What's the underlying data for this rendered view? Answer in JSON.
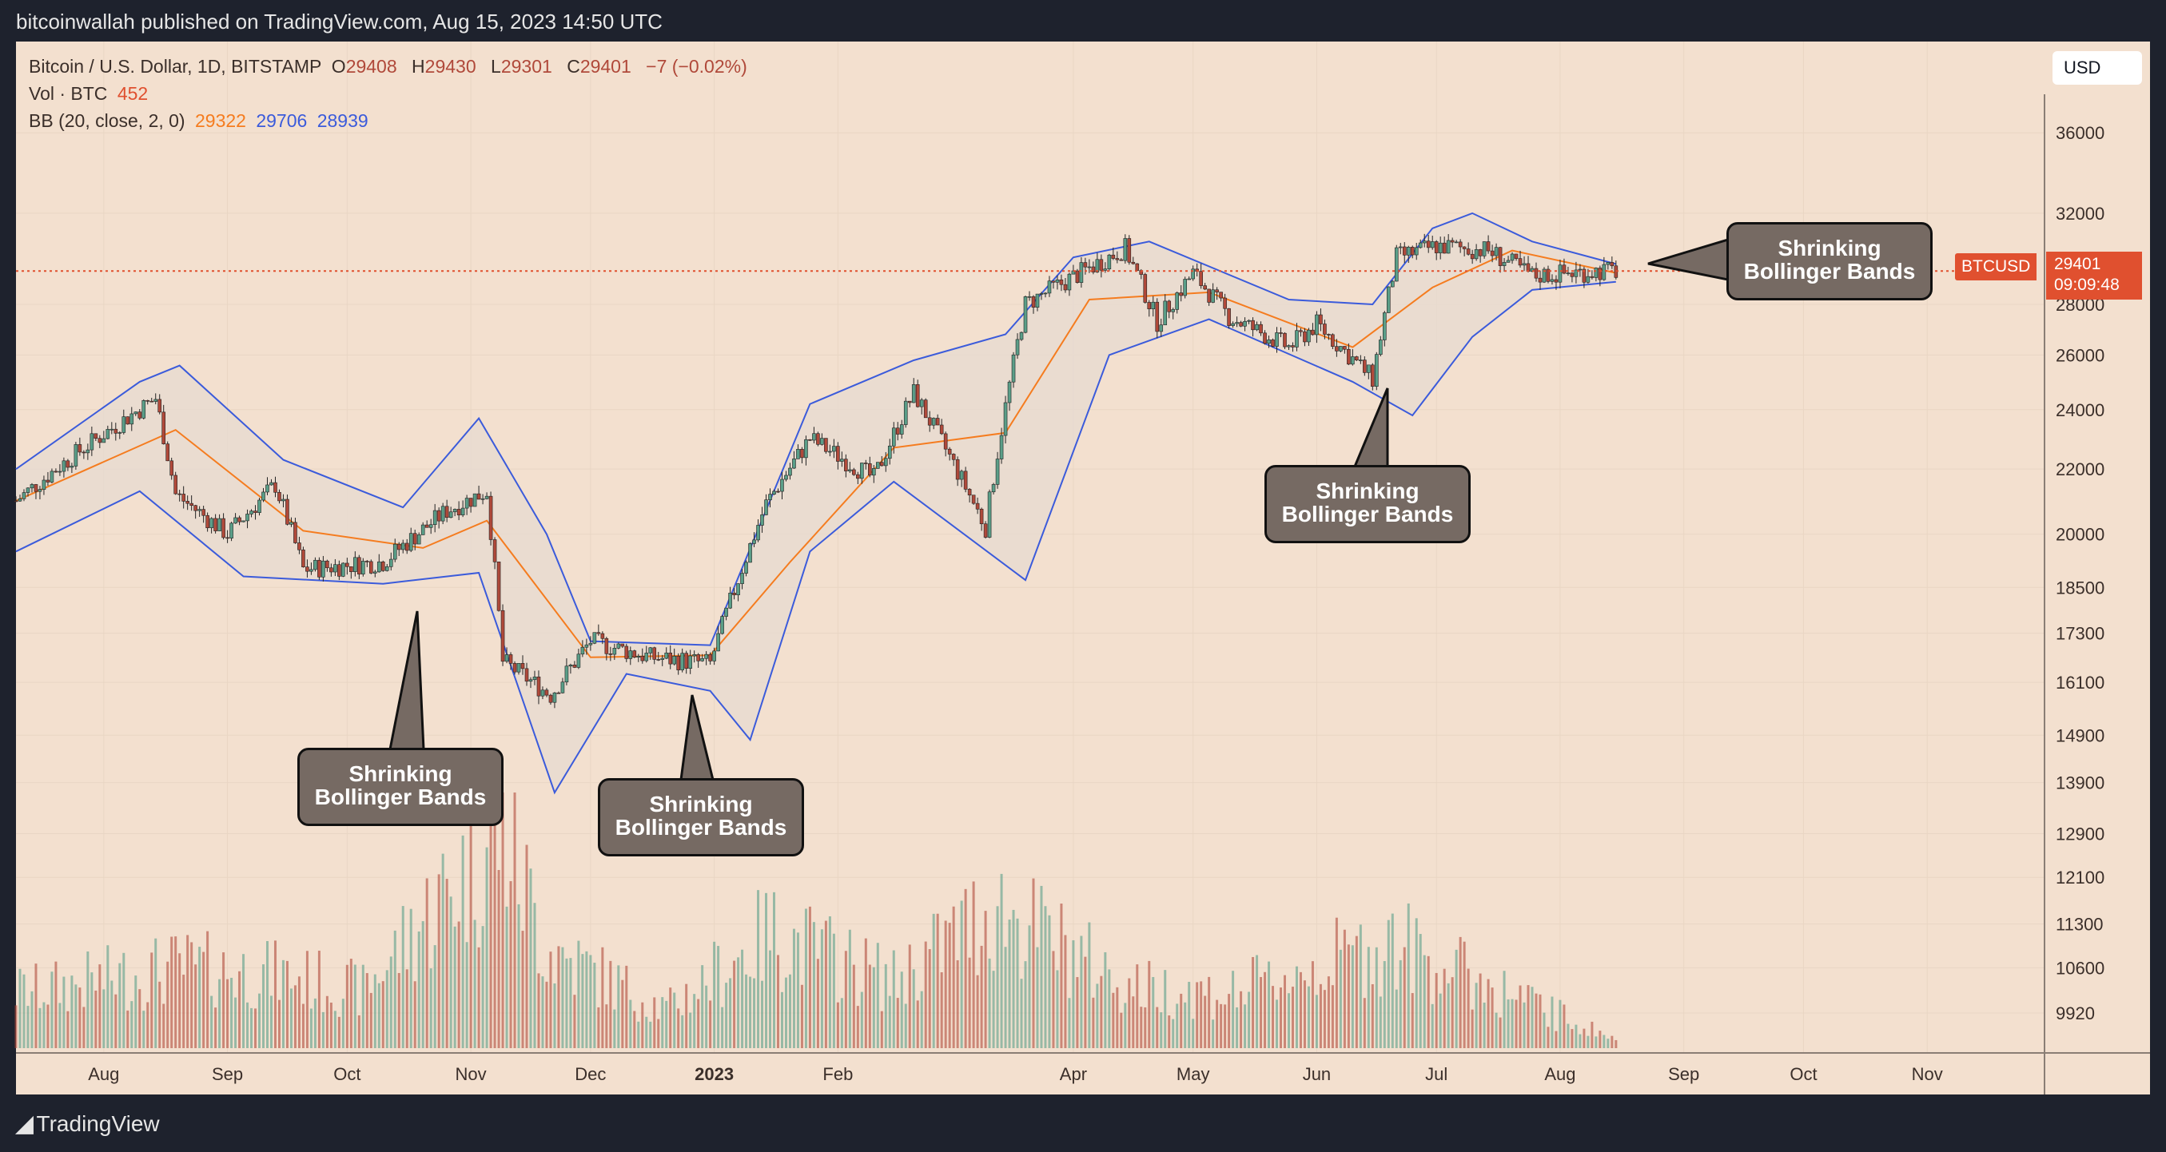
{
  "header": {
    "published": "bitcoinwallah published on TradingView.com, Aug 15, 2023 14:50 UTC"
  },
  "legend": {
    "symbol": "Bitcoin / U.S. Dollar, 1D, BITSTAMP",
    "open_label": "O",
    "open": "29408",
    "high_label": "H",
    "high": "29430",
    "low_label": "L",
    "low": "29301",
    "close_label": "C",
    "close": "29401",
    "change": "−7 (−0.02%)",
    "vol_label": "Vol · BTC",
    "vol_value": "452",
    "bb_label": "BB (20, close, 2, 0)",
    "bb_basis": "29322",
    "bb_upper": "29706",
    "bb_lower": "28939"
  },
  "currency_button": "USD",
  "price_tag": {
    "symbol": "BTCUSD",
    "price": "29401",
    "countdown": "09:09:48"
  },
  "footer": {
    "brand": "TradingView"
  },
  "callouts": [
    {
      "line1": "Shrinking",
      "line2": "Bollinger Bands"
    },
    {
      "line1": "Shrinking",
      "line2": "Bollinger Bands"
    },
    {
      "line1": "Shrinking",
      "line2": "Bollinger Bands"
    },
    {
      "line1": "Shrinking",
      "line2": "Bollinger Bands"
    }
  ],
  "colors": {
    "background": "#f3e0cf",
    "bb_basis": "#f57c1f",
    "bb_band": "#3b5bdb",
    "up": "#5a9e88",
    "down": "#b0493a",
    "price_line": "#e0502f"
  },
  "chart_data": {
    "type": "candlestick",
    "title": "Bitcoin / U.S. Dollar, 1D, BITSTAMP",
    "y_scale": "log",
    "ylim": [
      9500,
      38000
    ],
    "y_ticks": [
      36000,
      32000,
      28000,
      26000,
      24000,
      22000,
      20000,
      18500,
      17300,
      16100,
      14900,
      13900,
      12900,
      12100,
      11300,
      10600,
      9920
    ],
    "x_ticks": [
      "Aug",
      "Sep",
      "Oct",
      "Nov",
      "Dec",
      "2023",
      "Feb",
      "Apr",
      "May",
      "Jun",
      "Jul",
      "Aug",
      "Sep",
      "Oct",
      "Nov"
    ],
    "x_tick_dates": [
      "2022-08-01",
      "2022-09-01",
      "2022-10-01",
      "2022-11-01",
      "2022-12-01",
      "2023-01-01",
      "2023-02-01",
      "2023-04-01",
      "2023-05-01",
      "2023-06-01",
      "2023-07-01",
      "2023-08-01",
      "2023-09-01",
      "2023-10-01",
      "2023-11-01"
    ],
    "x_range": [
      "2022-07-10",
      "2023-11-30"
    ],
    "series": [
      {
        "name": "Bitcoin / U.S. Dollar",
        "kind": "price",
        "points": [
          [
            "2022-07-10",
            21000
          ],
          [
            "2022-07-25",
            22500
          ],
          [
            "2022-08-14",
            24400
          ],
          [
            "2022-08-19",
            21200
          ],
          [
            "2022-09-01",
            20000
          ],
          [
            "2022-09-13",
            21500
          ],
          [
            "2022-09-20",
            19000
          ],
          [
            "2022-10-10",
            19200
          ],
          [
            "2022-10-26",
            20700
          ],
          [
            "2022-11-05",
            21300
          ],
          [
            "2022-11-09",
            16600
          ],
          [
            "2022-11-21",
            15800
          ],
          [
            "2022-12-01",
            17100
          ],
          [
            "2022-12-16",
            16700
          ],
          [
            "2022-12-31",
            16550
          ],
          [
            "2023-01-14",
            20900
          ],
          [
            "2023-01-25",
            23000
          ],
          [
            "2023-02-10",
            21700
          ],
          [
            "2023-02-20",
            24600
          ],
          [
            "2023-03-10",
            20200
          ],
          [
            "2023-03-20",
            28000
          ],
          [
            "2023-04-14",
            30400
          ],
          [
            "2023-04-22",
            27300
          ],
          [
            "2023-05-01",
            29300
          ],
          [
            "2023-05-10",
            27500
          ],
          [
            "2023-05-25",
            26300
          ],
          [
            "2023-06-01",
            27200
          ],
          [
            "2023-06-15",
            25100
          ],
          [
            "2023-06-21",
            30000
          ],
          [
            "2023-07-01",
            30500
          ],
          [
            "2023-07-14",
            30300
          ],
          [
            "2023-07-25",
            29200
          ],
          [
            "2023-08-10",
            29400
          ],
          [
            "2023-08-15",
            29401
          ]
        ]
      },
      {
        "name": "BB basis",
        "kind": "basis",
        "points": [
          [
            "2022-07-10",
            21000
          ],
          [
            "2022-08-19",
            23300
          ],
          [
            "2022-09-20",
            20100
          ],
          [
            "2022-10-20",
            19600
          ],
          [
            "2022-11-05",
            20400
          ],
          [
            "2022-12-01",
            16700
          ],
          [
            "2022-12-31",
            16750
          ],
          [
            "2023-01-20",
            19200
          ],
          [
            "2023-02-15",
            22700
          ],
          [
            "2023-03-15",
            23200
          ],
          [
            "2023-04-05",
            28200
          ],
          [
            "2023-05-05",
            28500
          ],
          [
            "2023-06-10",
            26300
          ],
          [
            "2023-06-30",
            28700
          ],
          [
            "2023-07-20",
            30300
          ],
          [
            "2023-08-15",
            29322
          ]
        ]
      },
      {
        "name": "BB upper",
        "kind": "upper",
        "points": [
          [
            "2022-07-10",
            22000
          ],
          [
            "2022-08-10",
            25000
          ],
          [
            "2022-08-20",
            25600
          ],
          [
            "2022-09-15",
            22300
          ],
          [
            "2022-10-15",
            20800
          ],
          [
            "2022-11-03",
            23700
          ],
          [
            "2022-11-20",
            20000
          ],
          [
            "2022-12-01",
            17100
          ],
          [
            "2022-12-31",
            17000
          ],
          [
            "2023-01-25",
            24200
          ],
          [
            "2023-02-20",
            25800
          ],
          [
            "2023-03-15",
            26800
          ],
          [
            "2023-04-01",
            30000
          ],
          [
            "2023-04-20",
            30700
          ],
          [
            "2023-05-25",
            28200
          ],
          [
            "2023-06-15",
            28000
          ],
          [
            "2023-06-30",
            31300
          ],
          [
            "2023-07-10",
            32000
          ],
          [
            "2023-07-25",
            30700
          ],
          [
            "2023-08-15",
            29706
          ]
        ]
      },
      {
        "name": "BB lower",
        "kind": "lower",
        "points": [
          [
            "2022-07-10",
            19500
          ],
          [
            "2022-08-10",
            21300
          ],
          [
            "2022-09-05",
            18800
          ],
          [
            "2022-10-10",
            18600
          ],
          [
            "2022-11-03",
            18900
          ],
          [
            "2022-11-22",
            13700
          ],
          [
            "2022-12-10",
            16300
          ],
          [
            "2022-12-31",
            15900
          ],
          [
            "2023-01-10",
            14800
          ],
          [
            "2023-01-25",
            19500
          ],
          [
            "2023-02-15",
            21600
          ],
          [
            "2023-03-20",
            18700
          ],
          [
            "2023-04-10",
            26000
          ],
          [
            "2023-05-05",
            27400
          ],
          [
            "2023-06-10",
            25000
          ],
          [
            "2023-06-25",
            23800
          ],
          [
            "2023-07-10",
            26700
          ],
          [
            "2023-07-25",
            28600
          ],
          [
            "2023-08-15",
            28939
          ]
        ]
      },
      {
        "name": "Vol · BTC",
        "kind": "volume",
        "points": [
          [
            "2022-07-15",
            3000
          ],
          [
            "2022-08-20",
            4200
          ],
          [
            "2022-09-15",
            3800
          ],
          [
            "2022-10-05",
            3000
          ],
          [
            "2022-11-09",
            11500
          ],
          [
            "2022-11-20",
            5200
          ],
          [
            "2022-12-20",
            2000
          ],
          [
            "2023-01-15",
            6000
          ],
          [
            "2023-02-15",
            3500
          ],
          [
            "2023-03-10",
            7000
          ],
          [
            "2023-03-13",
            7300
          ],
          [
            "2023-04-15",
            3200
          ],
          [
            "2023-05-10",
            2800
          ],
          [
            "2023-06-20",
            5500
          ],
          [
            "2023-07-15",
            3200
          ],
          [
            "2023-08-15",
            452
          ]
        ]
      }
    ]
  }
}
